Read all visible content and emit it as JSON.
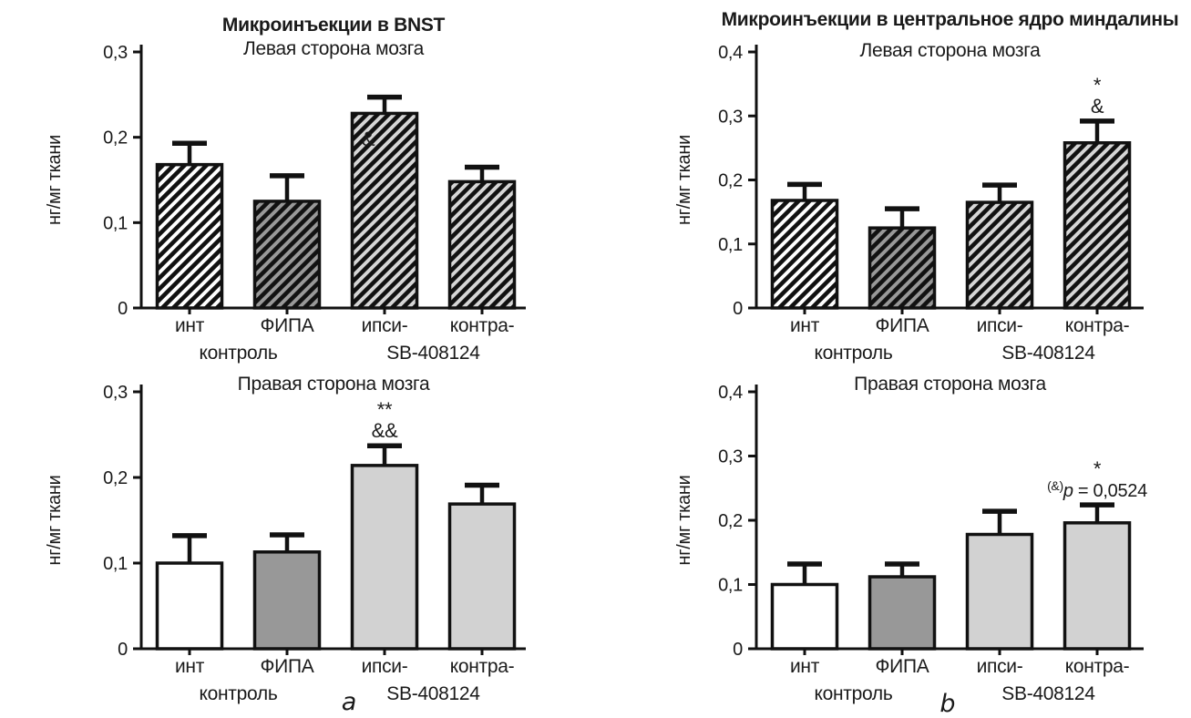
{
  "figure": {
    "background": "#ffffff",
    "text_color": "#1a1a1a",
    "line_color": "#111111",
    "panel_labels": {
      "a": "a",
      "b": "b"
    }
  },
  "chart_data": [
    {
      "id": "bnst-left-hemisphere",
      "type": "bar",
      "title": "Микроинъекции в BNST",
      "subtitle": "Левая сторона мозга",
      "ylabel": "нг/мг ткани",
      "ylim": [
        0,
        0.3
      ],
      "yticks": [
        {
          "value": 0,
          "label": "0"
        },
        {
          "value": 0.1,
          "label": "0,1"
        },
        {
          "value": 0.2,
          "label": "0,2"
        },
        {
          "value": 0.3,
          "label": "0,3"
        }
      ],
      "categories": [
        "инт",
        "ФИПА",
        "ипси-",
        "контра-"
      ],
      "groups": [
        {
          "label": "контроль",
          "bars": [
            0,
            1
          ]
        },
        {
          "label": "SB-408124",
          "bars": [
            2,
            3
          ]
        }
      ],
      "values": [
        0.168,
        0.125,
        0.228,
        0.148
      ],
      "errors": [
        0.025,
        0.03,
        0.019,
        0.017
      ],
      "bar_fill": "hatched",
      "bar_colors": [
        "#ffffff",
        "#989898",
        "#d6d6d6",
        "#d6d6d6"
      ],
      "annotations": [
        {
          "bar": 2,
          "lines": [
            "&"
          ],
          "y_value": 0.19,
          "dx": -18
        }
      ],
      "grid": false,
      "legend": null
    },
    {
      "id": "bnst-right-hemisphere",
      "type": "bar",
      "title": null,
      "subtitle": "Правая сторона мозга",
      "ylabel": "нг/мг ткани",
      "ylim": [
        0,
        0.3
      ],
      "yticks": [
        {
          "value": 0,
          "label": "0"
        },
        {
          "value": 0.1,
          "label": "0,1"
        },
        {
          "value": 0.2,
          "label": "0,2"
        },
        {
          "value": 0.3,
          "label": "0,3"
        }
      ],
      "categories": [
        "инт",
        "ФИПА",
        "ипси-",
        "контра-"
      ],
      "groups": [
        {
          "label": "контроль",
          "bars": [
            0,
            1
          ]
        },
        {
          "label": "SB-408124",
          "bars": [
            2,
            3
          ]
        }
      ],
      "values": [
        0.1,
        0.113,
        0.214,
        0.169
      ],
      "errors": [
        0.032,
        0.02,
        0.023,
        0.022
      ],
      "bar_fill": "solid",
      "bar_colors": [
        "#ffffff",
        "#989898",
        "#d2d2d2",
        "#d2d2d2"
      ],
      "annotations": [
        {
          "bar": 2,
          "lines": [
            "**",
            "&&"
          ]
        }
      ],
      "grid": false,
      "legend": null
    },
    {
      "id": "amygdala-left-hemisphere",
      "type": "bar",
      "title": "Микроинъекции в центральное ядро миндалины",
      "subtitle": "Левая сторона мозга",
      "ylabel": "нг/мг ткани",
      "ylim": [
        0,
        0.4
      ],
      "yticks": [
        {
          "value": 0,
          "label": "0"
        },
        {
          "value": 0.1,
          "label": "0,1"
        },
        {
          "value": 0.2,
          "label": "0,2"
        },
        {
          "value": 0.3,
          "label": "0,3"
        },
        {
          "value": 0.4,
          "label": "0,4"
        }
      ],
      "categories": [
        "инт",
        "ФИПА",
        "ипси-",
        "контра-"
      ],
      "groups": [
        {
          "label": "контроль",
          "bars": [
            0,
            1
          ]
        },
        {
          "label": "SB-408124",
          "bars": [
            2,
            3
          ]
        }
      ],
      "values": [
        0.168,
        0.125,
        0.165,
        0.258
      ],
      "errors": [
        0.025,
        0.03,
        0.027,
        0.034
      ],
      "bar_fill": "hatched",
      "bar_colors": [
        "#ffffff",
        "#989898",
        "#d6d6d6",
        "#d6d6d6"
      ],
      "annotations": [
        {
          "bar": 3,
          "lines": [
            "*",
            "&"
          ]
        }
      ],
      "grid": false,
      "legend": null
    },
    {
      "id": "amygdala-right-hemisphere",
      "type": "bar",
      "title": null,
      "subtitle": "Правая сторона мозга",
      "ylabel": "нг/мг ткани",
      "ylim": [
        0,
        0.4
      ],
      "yticks": [
        {
          "value": 0,
          "label": "0"
        },
        {
          "value": 0.1,
          "label": "0,1"
        },
        {
          "value": 0.2,
          "label": "0,2"
        },
        {
          "value": 0.3,
          "label": "0,3"
        },
        {
          "value": 0.4,
          "label": "0,4"
        }
      ],
      "categories": [
        "инт",
        "ФИПА",
        "ипси-",
        "контра-"
      ],
      "groups": [
        {
          "label": "контроль",
          "bars": [
            0,
            1
          ]
        },
        {
          "label": "SB-408124",
          "bars": [
            2,
            3
          ]
        }
      ],
      "values": [
        0.1,
        0.112,
        0.178,
        0.196
      ],
      "errors": [
        0.032,
        0.02,
        0.036,
        0.028
      ],
      "bar_fill": "solid",
      "bar_colors": [
        "#ffffff",
        "#989898",
        "#d2d2d2",
        "#d2d2d2"
      ],
      "annotations": [
        {
          "bar": 3,
          "lines": [
            "*",
            {
              "sup": "(&)",
              "italic": "p",
              "text": " = 0,0524"
            }
          ]
        }
      ],
      "grid": false,
      "legend": null
    }
  ]
}
